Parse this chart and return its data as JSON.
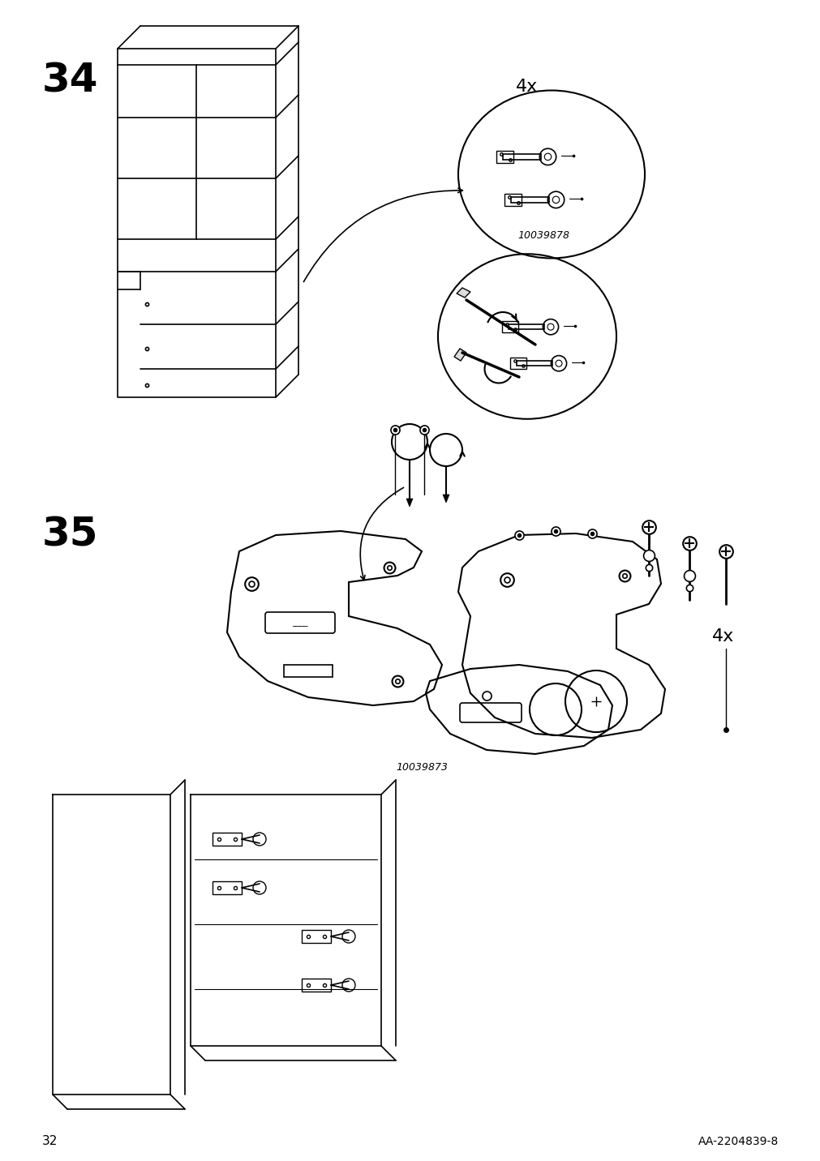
{
  "page_number": "32",
  "doc_id": "AA-2204839-8",
  "step_numbers": [
    "34",
    "35"
  ],
  "part_numbers": [
    "10039878",
    "10039873"
  ],
  "quantity_labels": [
    "4x",
    "4x"
  ],
  "bg_color": "#ffffff",
  "line_color": "#000000",
  "step_font_size": 36,
  "label_font_size": 14,
  "footer_font_size": 11
}
